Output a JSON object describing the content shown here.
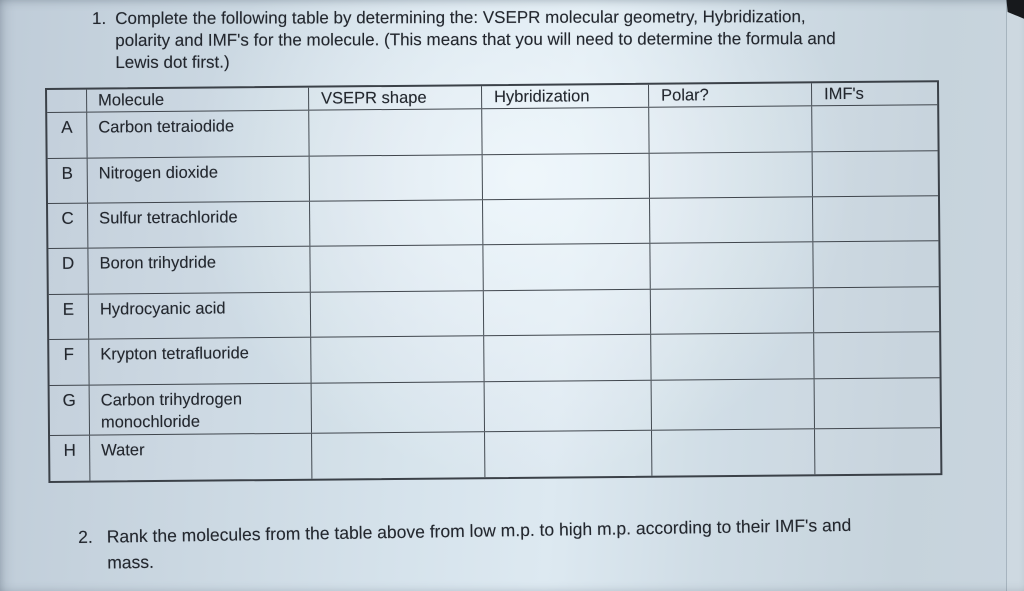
{
  "question1": {
    "number": "1.",
    "lines": [
      "Complete the following table by determining the: VSEPR molecular geometry, Hybridization,",
      "polarity and IMF's for the molecule.  (This means that you will need to determine the formula and",
      "Lewis dot first.)"
    ]
  },
  "table": {
    "headers": [
      "",
      "Molecule",
      "VSEPR shape",
      "Hybridization",
      "Polar?",
      "IMF's"
    ],
    "rows": [
      {
        "letter": "A",
        "molecule": "Carbon tetraiodide"
      },
      {
        "letter": "B",
        "molecule": "Nitrogen dioxide"
      },
      {
        "letter": "C",
        "molecule": "Sulfur tetrachloride"
      },
      {
        "letter": "D",
        "molecule": "Boron trihydride"
      },
      {
        "letter": "E",
        "molecule": "Hydrocyanic acid"
      },
      {
        "letter": "F",
        "molecule": "Krypton tetrafluoride"
      },
      {
        "letter": "G",
        "molecule": "Carbon trihydrogen monochloride"
      },
      {
        "letter": "H",
        "molecule": "Water"
      }
    ]
  },
  "question2": {
    "number": "2.",
    "lines": [
      "Rank the molecules from the table above from low m.p. to high m.p. according to their IMF's and",
      "mass."
    ]
  },
  "colors": {
    "paper_highlight": "#dde9f1",
    "paper_shadow": "#bfccd8",
    "table_line": "#40464d",
    "ink": "#23272e",
    "background_corner": "#17191c"
  }
}
